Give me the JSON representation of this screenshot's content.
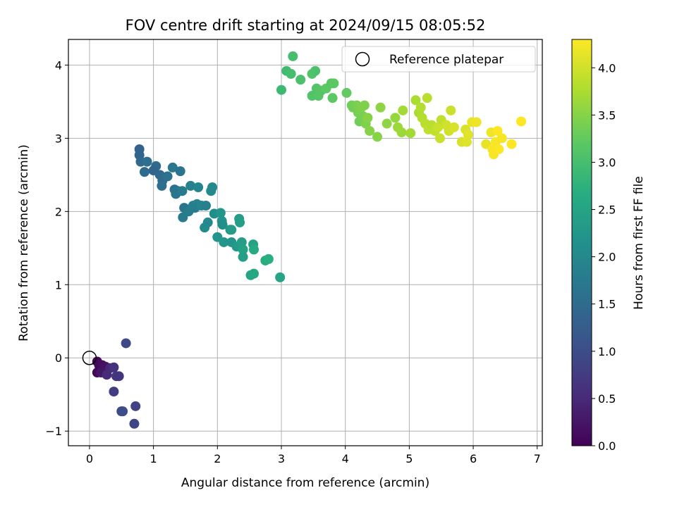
{
  "chart_data": {
    "type": "scatter",
    "title": "FOV centre drift starting at 2024/09/15 08:05:52",
    "xlabel": "Angular distance from reference (arcmin)",
    "ylabel": "Rotation from reference (arcmin)",
    "xlim": [
      -0.33,
      7.08
    ],
    "ylim": [
      -1.2,
      4.35
    ],
    "xticks": [
      0,
      1,
      2,
      3,
      4,
      5,
      6,
      7
    ],
    "yticks": [
      -1,
      0,
      1,
      2,
      3,
      4
    ],
    "grid": true,
    "legend": {
      "position": "top-right",
      "entries": [
        "Reference platepar"
      ]
    },
    "colorbar": {
      "label": "Hours from first FF file",
      "range": [
        0.0,
        4.3
      ],
      "ticks": [
        "0.0",
        "0.5",
        "1.0",
        "1.5",
        "2.0",
        "2.5",
        "3.0",
        "3.5",
        "4.0"
      ],
      "colormap": "viridis"
    },
    "reference_point": {
      "x": 0,
      "y": 0
    },
    "points": [
      [
        0.12,
        -0.05,
        0.05
      ],
      [
        0.15,
        -0.1,
        0.1
      ],
      [
        0.2,
        -0.1,
        0.15
      ],
      [
        0.25,
        -0.12,
        0.22
      ],
      [
        0.12,
        -0.2,
        0.08
      ],
      [
        0.18,
        -0.2,
        0.25
      ],
      [
        0.32,
        -0.14,
        0.45
      ],
      [
        0.38,
        -0.13,
        0.6
      ],
      [
        0.27,
        -0.23,
        0.5
      ],
      [
        0.42,
        -0.25,
        0.7
      ],
      [
        0.46,
        -0.25,
        0.65
      ],
      [
        0.38,
        -0.46,
        0.75
      ],
      [
        0.57,
        0.2,
        0.95
      ],
      [
        0.5,
        -0.73,
        0.9
      ],
      [
        0.52,
        -0.73,
        1.0
      ],
      [
        0.72,
        -0.66,
        0.85
      ],
      [
        0.7,
        -0.9,
        0.9
      ],
      [
        0.78,
        2.85,
        1.35
      ],
      [
        0.78,
        2.77,
        1.4
      ],
      [
        0.8,
        2.68,
        1.45
      ],
      [
        0.86,
        2.54,
        1.5
      ],
      [
        0.9,
        2.68,
        1.55
      ],
      [
        1.04,
        2.62,
        1.5
      ],
      [
        1.0,
        2.56,
        1.4
      ],
      [
        1.1,
        2.5,
        1.45
      ],
      [
        1.14,
        2.42,
        1.5
      ],
      [
        1.13,
        2.35,
        1.55
      ],
      [
        1.22,
        2.48,
        1.6
      ],
      [
        1.3,
        2.6,
        1.7
      ],
      [
        1.33,
        2.3,
        1.6
      ],
      [
        1.38,
        2.28,
        1.7
      ],
      [
        1.42,
        2.55,
        1.65
      ],
      [
        1.35,
        2.24,
        1.65
      ],
      [
        1.45,
        2.28,
        1.75
      ],
      [
        1.48,
        2.05,
        1.65
      ],
      [
        1.46,
        1.92,
        1.75
      ],
      [
        1.55,
        2.0,
        1.8
      ],
      [
        1.58,
        2.35,
        1.85
      ],
      [
        1.62,
        2.08,
        1.85
      ],
      [
        1.68,
        2.1,
        1.9
      ],
      [
        1.65,
        2.05,
        1.8
      ],
      [
        1.7,
        2.33,
        1.95
      ],
      [
        1.75,
        2.08,
        1.95
      ],
      [
        1.8,
        1.78,
        2.05
      ],
      [
        1.82,
        2.08,
        1.85
      ],
      [
        1.85,
        1.85,
        2.0
      ],
      [
        1.9,
        2.28,
        2.05
      ],
      [
        1.92,
        2.33,
        2.0
      ],
      [
        1.95,
        1.97,
        2.1
      ],
      [
        2.0,
        1.65,
        2.2
      ],
      [
        2.05,
        1.98,
        2.25
      ],
      [
        2.07,
        1.87,
        2.2
      ],
      [
        2.1,
        1.58,
        2.25
      ],
      [
        2.08,
        1.82,
        2.1
      ],
      [
        2.2,
        1.75,
        2.3
      ],
      [
        2.22,
        1.75,
        2.35
      ],
      [
        2.22,
        1.58,
        2.2
      ],
      [
        2.3,
        1.52,
        2.3
      ],
      [
        2.34,
        1.9,
        2.35
      ],
      [
        2.35,
        1.85,
        2.4
      ],
      [
        2.38,
        1.58,
        2.4
      ],
      [
        2.4,
        1.48,
        2.45
      ],
      [
        2.4,
        1.38,
        2.4
      ],
      [
        2.52,
        1.13,
        2.5
      ],
      [
        2.56,
        1.55,
        2.45
      ],
      [
        2.57,
        1.48,
        2.6
      ],
      [
        2.57,
        1.15,
        2.55
      ],
      [
        2.75,
        1.33,
        2.6
      ],
      [
        2.8,
        1.35,
        2.7
      ],
      [
        2.98,
        1.1,
        2.5
      ],
      [
        3.18,
        4.12,
        3.0
      ],
      [
        3.0,
        3.66,
        2.9
      ],
      [
        3.08,
        3.92,
        2.95
      ],
      [
        3.15,
        3.88,
        3.0
      ],
      [
        3.3,
        3.8,
        3.05
      ],
      [
        3.48,
        3.88,
        3.1
      ],
      [
        3.53,
        3.92,
        3.05
      ],
      [
        3.48,
        3.58,
        3.1
      ],
      [
        3.55,
        3.68,
        3.1
      ],
      [
        3.58,
        3.58,
        3.15
      ],
      [
        3.62,
        3.65,
        3.15
      ],
      [
        3.7,
        3.68,
        3.2
      ],
      [
        3.78,
        3.75,
        3.15
      ],
      [
        3.8,
        3.55,
        3.2
      ],
      [
        3.82,
        3.75,
        3.2
      ],
      [
        4.02,
        3.62,
        3.25
      ],
      [
        4.1,
        3.45,
        3.35
      ],
      [
        4.12,
        3.42,
        3.35
      ],
      [
        4.18,
        3.45,
        3.4
      ],
      [
        4.2,
        3.35,
        3.4
      ],
      [
        4.22,
        3.23,
        3.35
      ],
      [
        4.25,
        3.42,
        3.45
      ],
      [
        4.28,
        3.3,
        3.4
      ],
      [
        4.3,
        3.45,
        3.45
      ],
      [
        4.32,
        3.2,
        3.45
      ],
      [
        4.35,
        3.28,
        3.5
      ],
      [
        4.38,
        3.1,
        3.5
      ],
      [
        4.5,
        3.02,
        3.5
      ],
      [
        4.55,
        3.42,
        3.55
      ],
      [
        4.65,
        3.2,
        3.55
      ],
      [
        4.78,
        3.28,
        3.6
      ],
      [
        4.82,
        3.15,
        3.65
      ],
      [
        4.88,
        3.08,
        3.65
      ],
      [
        4.9,
        3.38,
        3.7
      ],
      [
        5.02,
        3.07,
        3.7
      ],
      [
        5.1,
        3.52,
        3.75
      ],
      [
        5.15,
        3.35,
        3.75
      ],
      [
        5.18,
        3.42,
        3.8
      ],
      [
        5.2,
        3.28,
        3.8
      ],
      [
        5.28,
        3.55,
        3.85
      ],
      [
        5.25,
        3.2,
        3.85
      ],
      [
        5.3,
        3.12,
        3.9
      ],
      [
        5.35,
        3.18,
        3.85
      ],
      [
        5.4,
        3.1,
        3.9
      ],
      [
        5.45,
        3.15,
        3.95
      ],
      [
        5.48,
        3.0,
        3.95
      ],
      [
        5.5,
        3.25,
        3.9
      ],
      [
        5.58,
        3.18,
        4.0
      ],
      [
        5.62,
        3.1,
        4.0
      ],
      [
        5.65,
        3.38,
        3.95
      ],
      [
        5.7,
        3.15,
        4.05
      ],
      [
        5.82,
        2.95,
        4.05
      ],
      [
        5.88,
        3.12,
        4.05
      ],
      [
        5.9,
        2.95,
        4.1
      ],
      [
        5.92,
        3.05,
        4.1
      ],
      [
        5.98,
        3.22,
        4.15
      ],
      [
        6.05,
        3.22,
        4.2
      ],
      [
        6.2,
        2.92,
        4.15
      ],
      [
        6.28,
        3.08,
        4.2
      ],
      [
        6.3,
        2.85,
        4.25
      ],
      [
        6.32,
        2.78,
        4.25
      ],
      [
        6.35,
        2.95,
        4.25
      ],
      [
        6.38,
        3.1,
        4.3
      ],
      [
        6.4,
        2.85,
        4.3
      ],
      [
        6.45,
        3.0,
        4.25
      ],
      [
        6.6,
        2.92,
        4.3
      ],
      [
        6.75,
        3.23,
        4.3
      ]
    ]
  }
}
